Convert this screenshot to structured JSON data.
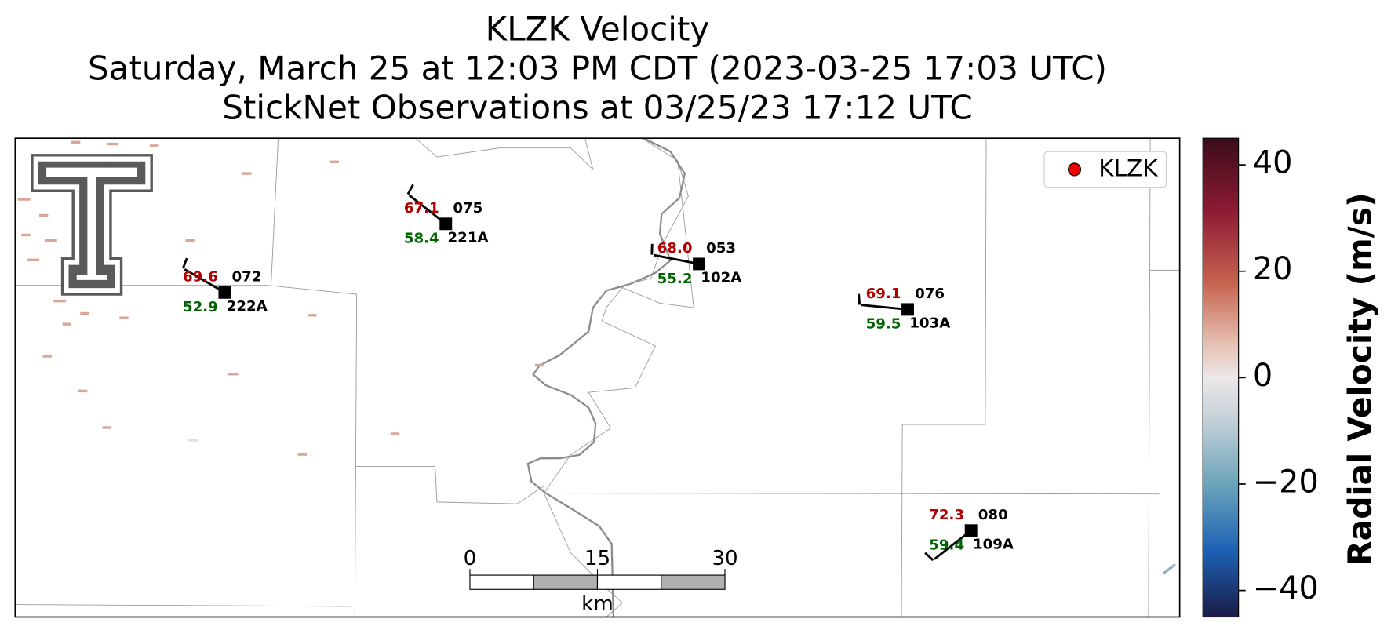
{
  "title": [
    "KLZK Velocity",
    "Saturday, March 25 at 12:03 PM CDT (2023-03-25 17:03 UTC)",
    "StickNet Observations at 03/25/23 17:12 UTC"
  ],
  "legend": {
    "label": "KLZK"
  },
  "stations": [
    {
      "id": "222A",
      "code": "072",
      "temperature": "69.6",
      "dewpoint": "52.9"
    },
    {
      "id": "221A",
      "code": "075",
      "temperature": "67.1",
      "dewpoint": "58.4"
    },
    {
      "id": "102A",
      "code": "053",
      "temperature": "68.0",
      "dewpoint": "55.2"
    },
    {
      "id": "103A",
      "code": "076",
      "temperature": "69.1",
      "dewpoint": "59.5"
    },
    {
      "id": "109A",
      "code": "080",
      "temperature": "72.3",
      "dewpoint": "59.4"
    }
  ],
  "scale_bar": {
    "ticks": [
      0,
      15,
      30
    ],
    "unit": "km"
  },
  "colorbar": {
    "label": "Radial Velocity (m/s)",
    "lim": [
      -45,
      45
    ],
    "ticks": [
      {
        "value": -40,
        "label": "−40"
      },
      {
        "value": -20,
        "label": "−20"
      },
      0,
      20,
      40
    ]
  }
}
